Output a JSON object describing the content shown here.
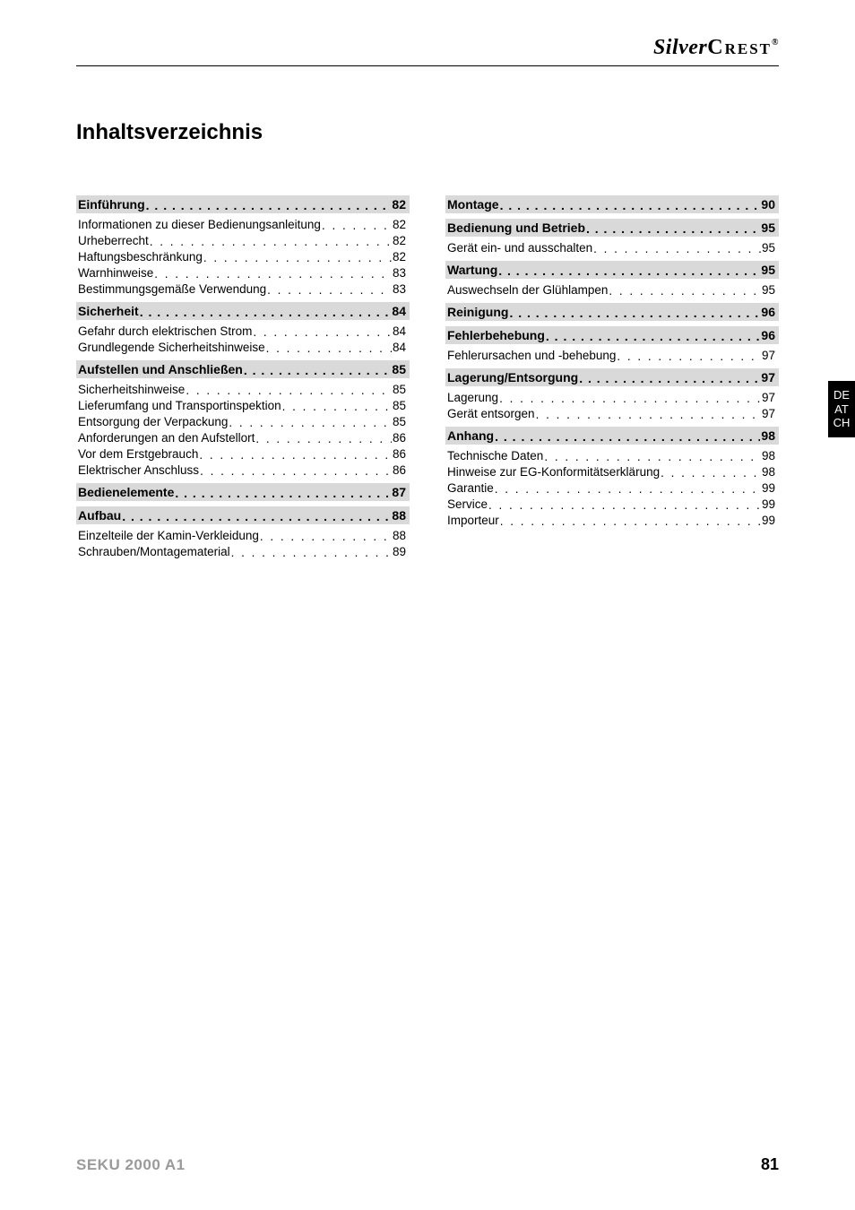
{
  "brand": {
    "first": "Silver",
    "second": "Crest",
    "mark": "®"
  },
  "title": "Inhaltsverzeichnis",
  "side_tab": [
    "DE",
    "AT",
    "CH"
  ],
  "footer": {
    "model": "SEKU 2000 A1",
    "page": "81"
  },
  "colors": {
    "section_bg": "#d9d9d9",
    "text": "#000000",
    "footer_model": "#9a9a9a",
    "tab_bg": "#000000",
    "tab_fg": "#ffffff"
  },
  "toc_left": [
    {
      "type": "head",
      "label": "Einführung",
      "page": "82"
    },
    {
      "type": "item",
      "label": "Informationen zu dieser Bedienungsanleitung",
      "page": "82"
    },
    {
      "type": "item",
      "label": "Urheberrecht",
      "page": "82"
    },
    {
      "type": "item",
      "label": "Haftungsbeschränkung",
      "page": "82"
    },
    {
      "type": "item",
      "label": "Warnhinweise",
      "page": "83"
    },
    {
      "type": "item",
      "label": "Bestimmungsgemäße Verwendung",
      "page": "83"
    },
    {
      "type": "head",
      "label": "Sicherheit",
      "page": "84"
    },
    {
      "type": "item",
      "label": "Gefahr durch elektrischen Strom",
      "page": "84"
    },
    {
      "type": "item",
      "label": "Grundlegende Sicherheitshinweise",
      "page": "84"
    },
    {
      "type": "head",
      "label": "Aufstellen und Anschließen",
      "page": "85"
    },
    {
      "type": "item",
      "label": "Sicherheitshinweise",
      "page": "85"
    },
    {
      "type": "item",
      "label": "Lieferumfang und Transportinspektion",
      "page": "85"
    },
    {
      "type": "item",
      "label": "Entsorgung der Verpackung",
      "page": "85"
    },
    {
      "type": "item",
      "label": "Anforderungen an den Aufstellort",
      "page": "86"
    },
    {
      "type": "item",
      "label": "Vor dem Erstgebrauch",
      "page": "86"
    },
    {
      "type": "item",
      "label": "Elektrischer Anschluss",
      "page": "86"
    },
    {
      "type": "head",
      "label": "Bedienelemente",
      "page": "87"
    },
    {
      "type": "head",
      "label": "Aufbau",
      "page": "88"
    },
    {
      "type": "item",
      "label": "Einzelteile der Kamin-Verkleidung",
      "page": "88"
    },
    {
      "type": "item",
      "label": "Schrauben/Montagematerial",
      "page": "89"
    }
  ],
  "toc_right": [
    {
      "type": "head",
      "label": "Montage",
      "page": "90"
    },
    {
      "type": "head",
      "label": "Bedienung und Betrieb",
      "page": "95"
    },
    {
      "type": "item",
      "label": "Gerät ein- und ausschalten",
      "page": "95"
    },
    {
      "type": "head",
      "label": "Wartung",
      "page": "95"
    },
    {
      "type": "item",
      "label": "Auswechseln der Glühlampen",
      "page": "95"
    },
    {
      "type": "head",
      "label": "Reinigung",
      "page": "96"
    },
    {
      "type": "head",
      "label": "Fehlerbehebung",
      "page": "96"
    },
    {
      "type": "item",
      "label": "Fehlerursachen und -behebung",
      "page": "97"
    },
    {
      "type": "head",
      "label": "Lagerung/Entsorgung",
      "page": "97"
    },
    {
      "type": "item",
      "label": "Lagerung",
      "page": "97"
    },
    {
      "type": "item",
      "label": "Gerät entsorgen",
      "page": "97"
    },
    {
      "type": "head",
      "label": "Anhang",
      "page": "98"
    },
    {
      "type": "item",
      "label": "Technische Daten",
      "page": "98"
    },
    {
      "type": "item",
      "label": "Hinweise zur EG-Konformitätserklärung",
      "page": "98"
    },
    {
      "type": "item",
      "label": "Garantie",
      "page": "99"
    },
    {
      "type": "item",
      "label": "Service",
      "page": "99"
    },
    {
      "type": "item",
      "label": "Importeur",
      "page": "99"
    }
  ]
}
